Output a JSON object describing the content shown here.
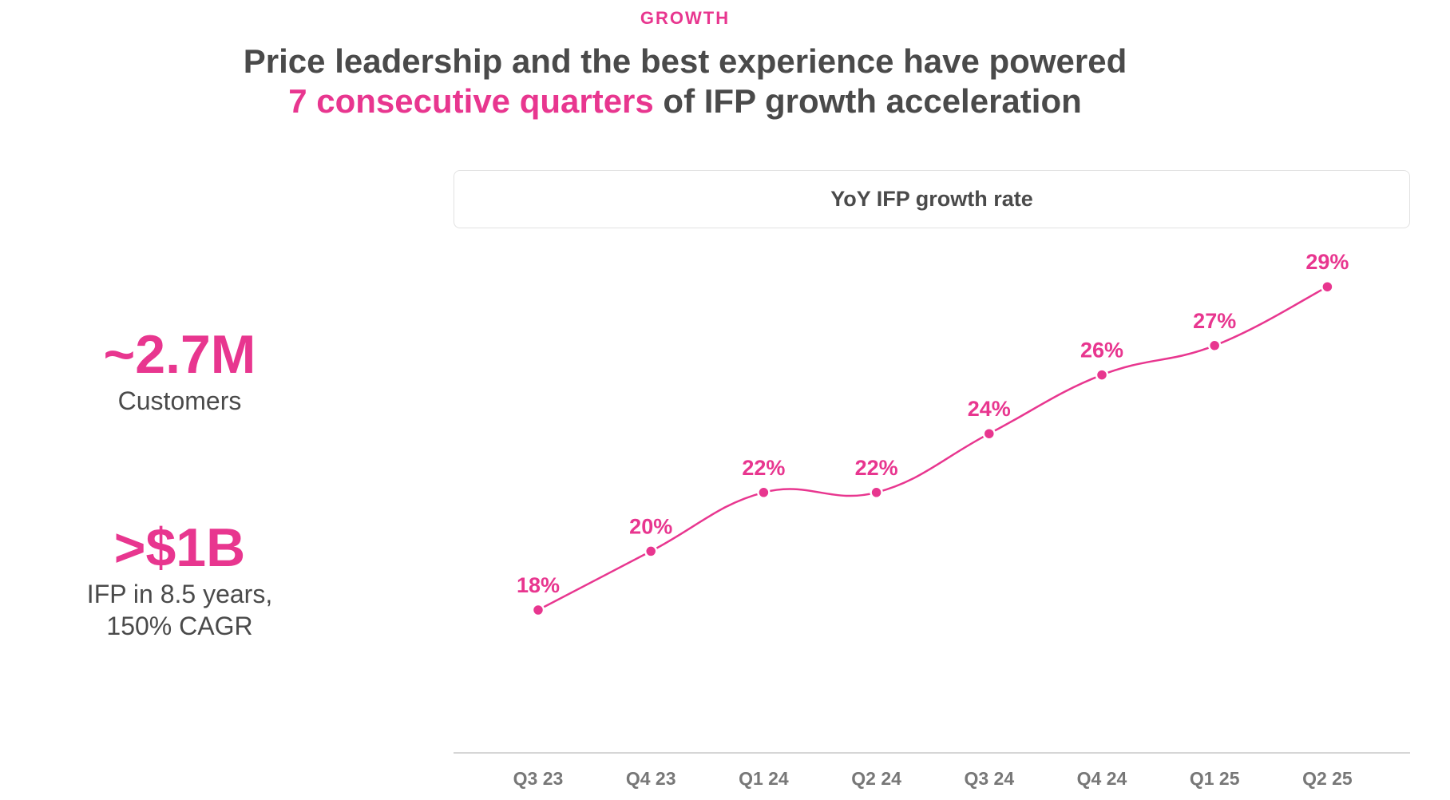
{
  "eyebrow": "GROWTH",
  "headline": {
    "line1": "Price leadership and the best experience have powered",
    "line2_accent": "7 consecutive quarters",
    "line2_rest": " of IFP growth acceleration"
  },
  "stats": [
    {
      "value": "~2.7M",
      "label": "Customers"
    },
    {
      "value": ">$1B",
      "label": "IFP in 8.5 years,",
      "label2": "150% CAGR"
    }
  ],
  "colors": {
    "accent": "#e8368f",
    "text": "#4a4a4a",
    "axis": "#c8c8c8",
    "tick": "#777777"
  },
  "chart_data": {
    "type": "line",
    "title": "YoY IFP growth rate",
    "categories": [
      "Q3 23",
      "Q4 23",
      "Q1 24",
      "Q2 24",
      "Q3 24",
      "Q4 24",
      "Q1 25",
      "Q2 25"
    ],
    "series": [
      {
        "values": [
          18,
          20,
          22,
          22,
          24,
          26,
          27,
          29
        ],
        "data_labels": [
          "18%",
          "20%",
          "22%",
          "22%",
          "24%",
          "26%",
          "27%",
          "29%"
        ]
      }
    ],
    "xlabel": "",
    "ylabel": "",
    "ylim": [
      18,
      29
    ],
    "grid": false,
    "smooth": true
  }
}
